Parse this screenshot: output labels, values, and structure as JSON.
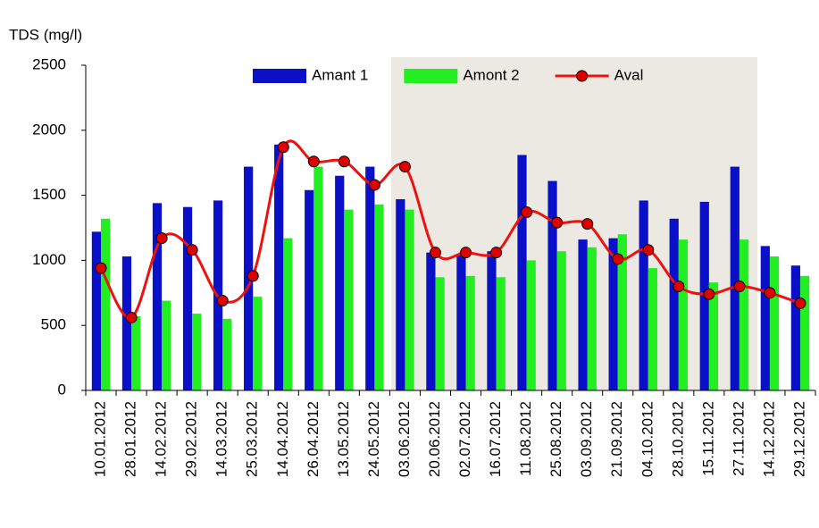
{
  "chart_data": {
    "type": "bar",
    "y_axis_label": "TDS (mg/l)",
    "categories": [
      "10.01.2012",
      "28.01.2012",
      "14.02.2012",
      "29.02.2012",
      "14.03.2012",
      "25.03.2012",
      "14.04.2012",
      "26.04.2012",
      "13.05.2012",
      "24.05.2012",
      "03.06.2012",
      "20.06.2012",
      "02.07.2012",
      "16.07.2012",
      "11.08.2012",
      "25.08.2012",
      "03.09.2012",
      "21.09.2012",
      "04.10.2012",
      "28.10.2012",
      "15.11.2012",
      "27.11.2012",
      "14.12.2012",
      "29.12.2012"
    ],
    "series": [
      {
        "name": "Amant 1",
        "type": "bar",
        "color": "#0a10c8",
        "values": [
          1220,
          1030,
          1440,
          1410,
          1460,
          1720,
          1890,
          1540,
          1650,
          1720,
          1470,
          1060,
          1050,
          1070,
          1810,
          1610,
          1160,
          1170,
          1460,
          1320,
          1450,
          1720,
          1110,
          960
        ]
      },
      {
        "name": "Amont 2",
        "type": "bar",
        "color": "#22ee22",
        "values": [
          1320,
          570,
          690,
          590,
          550,
          720,
          1170,
          1720,
          1390,
          1430,
          1390,
          870,
          880,
          870,
          1000,
          1070,
          1100,
          1200,
          940,
          1160,
          830,
          1160,
          1030,
          880
        ]
      },
      {
        "name": "Aval",
        "type": "line",
        "color": "#ee1111",
        "marker_color": "#dd0000",
        "values": [
          940,
          560,
          1170,
          1080,
          690,
          880,
          1870,
          1760,
          1760,
          1580,
          1720,
          1060,
          1060,
          1060,
          1370,
          1290,
          1280,
          1010,
          1080,
          800,
          740,
          800,
          750,
          670
        ]
      }
    ],
    "ylim": [
      0,
      2500
    ],
    "yticks": [
      0,
      500,
      1000,
      1500,
      2000,
      2500
    ],
    "legend": "top"
  }
}
